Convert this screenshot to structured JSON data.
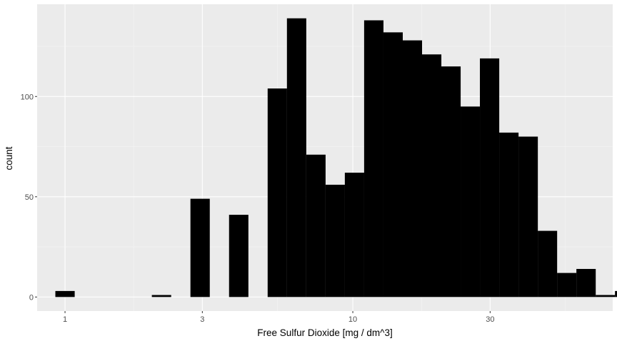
{
  "chart_data": {
    "type": "bar",
    "title": "",
    "xlabel": "Free Sulfur Dioxide [mg / dm^3]",
    "ylabel": "count",
    "x_scale": "log10",
    "xlim": [
      0.8,
      80
    ],
    "ylim": [
      -7,
      146
    ],
    "x_ticks": [
      {
        "value": 1,
        "label": "1"
      },
      {
        "value": 3,
        "label": "3"
      },
      {
        "value": 10,
        "label": "10"
      },
      {
        "value": 30,
        "label": "30"
      }
    ],
    "x_minor_ticks": [
      1.732,
      5.477,
      17.32,
      54.77
    ],
    "y_ticks": [
      {
        "value": 0,
        "label": "0"
      },
      {
        "value": 50,
        "label": "50"
      },
      {
        "value": 100,
        "label": "100"
      }
    ],
    "y_minor_ticks": [
      25,
      75,
      125
    ],
    "bin_width_log10": 0.0672,
    "bins": [
      {
        "center": 1,
        "count": 3
      },
      {
        "center": 1.167,
        "count": 0
      },
      {
        "center": 1.362,
        "count": 0
      },
      {
        "center": 1.589,
        "count": 0
      },
      {
        "center": 1.855,
        "count": 0
      },
      {
        "center": 2.164,
        "count": 1
      },
      {
        "center": 2.526,
        "count": 0
      },
      {
        "center": 2.947,
        "count": 49
      },
      {
        "center": 3.439,
        "count": 0
      },
      {
        "center": 4.014,
        "count": 41
      },
      {
        "center": 4.684,
        "count": 0
      },
      {
        "center": 5.466,
        "count": 104
      },
      {
        "center": 6.378,
        "count": 139
      },
      {
        "center": 7.443,
        "count": 71
      },
      {
        "center": 8.686,
        "count": 56
      },
      {
        "center": 10.136,
        "count": 62
      },
      {
        "center": 11.828,
        "count": 138
      },
      {
        "center": 13.803,
        "count": 132
      },
      {
        "center": 16.107,
        "count": 128
      },
      {
        "center": 18.796,
        "count": 121
      },
      {
        "center": 21.934,
        "count": 115
      },
      {
        "center": 25.596,
        "count": 95
      },
      {
        "center": 29.869,
        "count": 119
      },
      {
        "center": 34.856,
        "count": 82
      },
      {
        "center": 40.675,
        "count": 80
      },
      {
        "center": 47.465,
        "count": 33
      },
      {
        "center": 55.389,
        "count": 12
      },
      {
        "center": 64.636,
        "count": 14
      },
      {
        "center": 75.427,
        "count": 1
      },
      {
        "center": 88.018,
        "count": 3
      }
    ],
    "grid": true,
    "legend": "none",
    "colors": {
      "panel_background": "#ebebeb",
      "major_grid": "#ffffff",
      "minor_grid": "#f5f5f5",
      "bar_fill": "#000000",
      "tick_text": "#4d4d4d",
      "axis_title": "#000000",
      "tick_mark": "#333333"
    }
  }
}
